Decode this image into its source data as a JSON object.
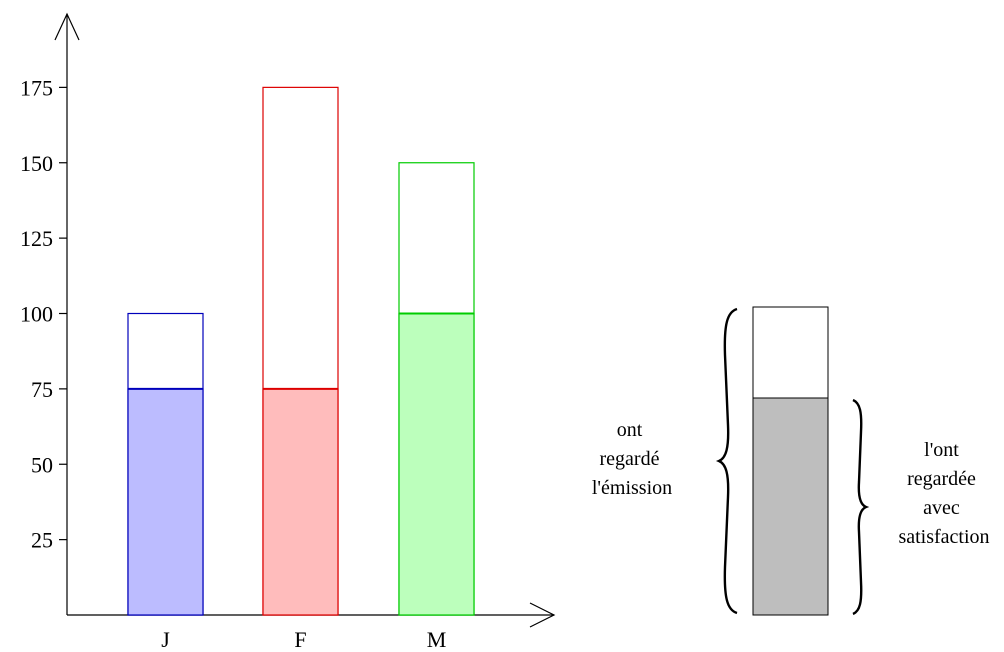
{
  "chart_data": {
    "type": "bar",
    "categories": [
      "J",
      "F",
      "M"
    ],
    "series": [
      {
        "values": [
          100,
          175,
          150
        ]
      },
      {
        "values": [
          75,
          75,
          100
        ]
      }
    ],
    "ylim": [
      0,
      200
    ],
    "y_ticks": [
      25,
      50,
      75,
      100,
      125,
      150,
      175
    ],
    "colors": {
      "J": {
        "stroke": "#0000bb",
        "fill": "#bcbcff"
      },
      "F": {
        "stroke": "#dd0000",
        "fill": "#ffbcbc"
      },
      "M": {
        "stroke": "#00cc00",
        "fill": "#bcffbc"
      }
    },
    "grid": false
  },
  "legend": {
    "left_label": [
      "ont",
      "regardé",
      "l'émission"
    ],
    "right_label": [
      "l'ont",
      "regardée",
      "avec",
      "satisfaction"
    ],
    "total_color": "#ffffff",
    "part_color": "#bebebe"
  }
}
